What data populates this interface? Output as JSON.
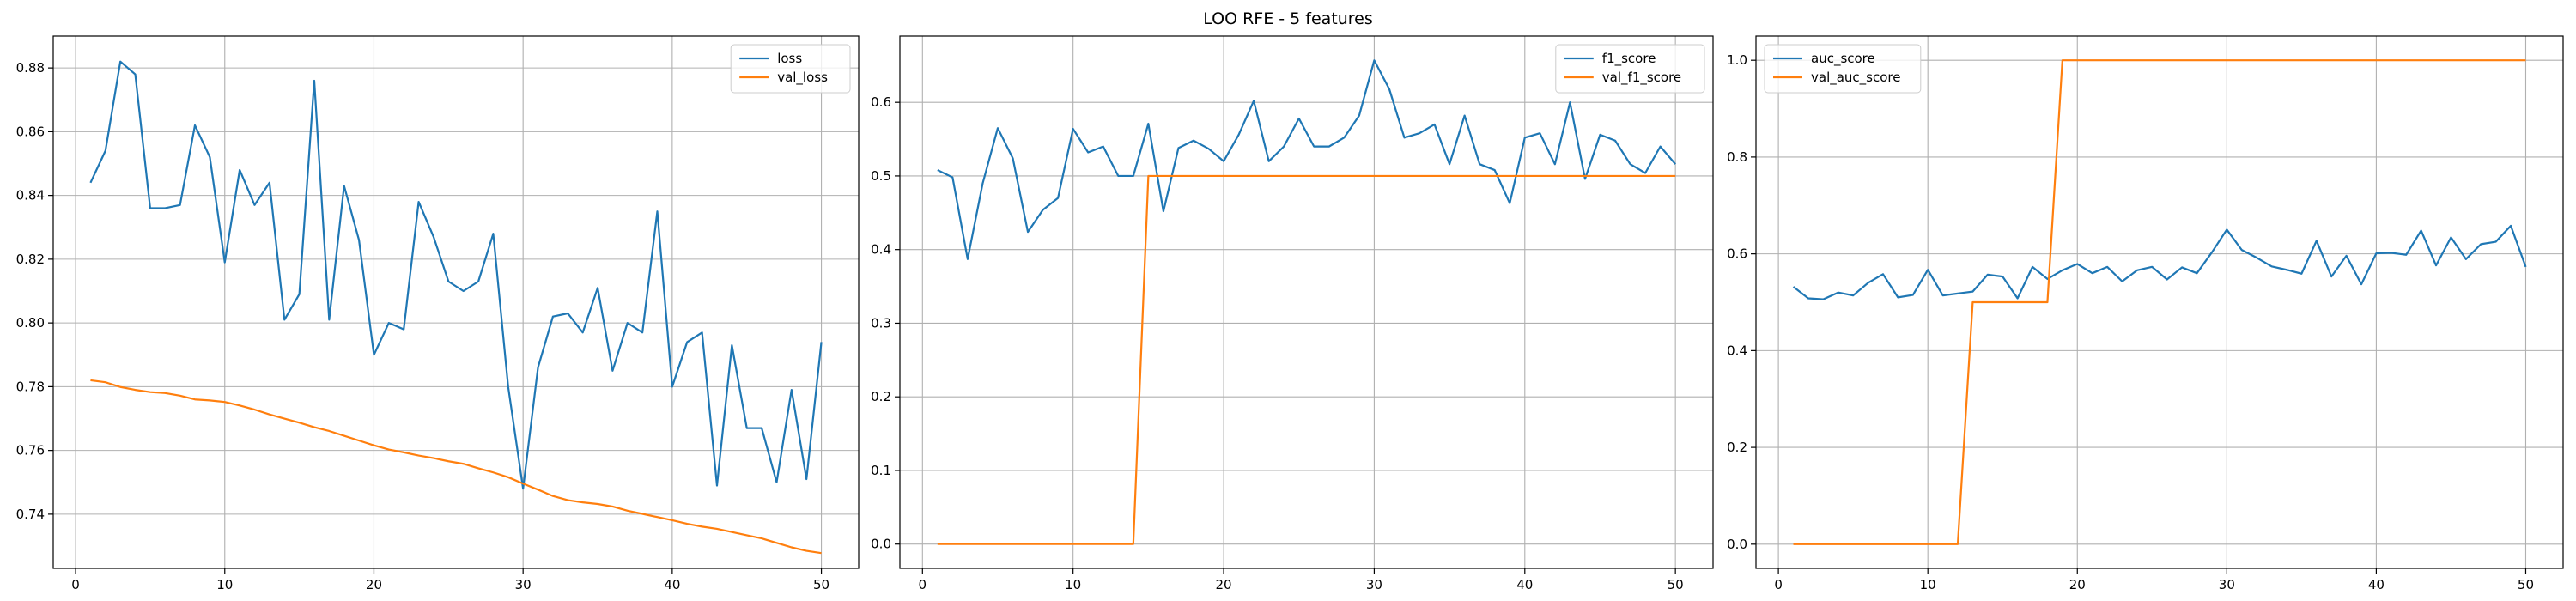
{
  "suptitle": "LOO RFE - 5 features",
  "colors": {
    "series_1": "#1f77b4",
    "series_2": "#ff7f0e",
    "grid": "#b0b0b0"
  },
  "chart_data": [
    {
      "type": "line",
      "title": "",
      "xlabel": "",
      "ylabel": "",
      "grid": true,
      "legend_placement": "top-right",
      "xlim": [
        -1.5,
        52.5
      ],
      "ylim": [
        0.723,
        0.89
      ],
      "xticks": [
        0,
        10,
        20,
        30,
        40,
        50
      ],
      "yticks": [
        0.74,
        0.76,
        0.78,
        0.8,
        0.82,
        0.84,
        0.86,
        0.88
      ],
      "ytick_decimals": 2,
      "x": [
        1,
        2,
        3,
        4,
        5,
        6,
        7,
        8,
        9,
        10,
        11,
        12,
        13,
        14,
        15,
        16,
        17,
        18,
        19,
        20,
        21,
        22,
        23,
        24,
        25,
        26,
        27,
        28,
        29,
        30,
        31,
        32,
        33,
        34,
        35,
        36,
        37,
        38,
        39,
        40,
        41,
        42,
        43,
        44,
        45,
        46,
        47,
        48,
        49,
        50
      ],
      "series": [
        {
          "name": "loss",
          "color": "#1f77b4",
          "values": [
            0.844,
            0.854,
            0.882,
            0.878,
            0.836,
            0.836,
            0.837,
            0.862,
            0.852,
            0.819,
            0.848,
            0.837,
            0.844,
            0.801,
            0.809,
            0.876,
            0.801,
            0.843,
            0.826,
            0.79,
            0.8,
            0.798,
            0.838,
            0.827,
            0.813,
            0.81,
            0.813,
            0.828,
            0.78,
            0.748,
            0.786,
            0.802,
            0.803,
            0.797,
            0.811,
            0.785,
            0.8,
            0.797,
            0.835,
            0.78,
            0.794,
            0.797,
            0.749,
            0.793,
            0.767,
            0.767,
            0.75,
            0.779,
            0.751,
            0.794
          ]
        },
        {
          "name": "val_loss",
          "color": "#ff7f0e",
          "values": [
            0.782,
            0.7814,
            0.7799,
            0.779,
            0.7783,
            0.778,
            0.7772,
            0.776,
            0.7757,
            0.7752,
            0.7741,
            0.7728,
            0.7713,
            0.77,
            0.7687,
            0.7673,
            0.7661,
            0.7646,
            0.7631,
            0.7616,
            0.7603,
            0.7594,
            0.7584,
            0.7576,
            0.7566,
            0.7558,
            0.7544,
            0.7531,
            0.7516,
            0.7496,
            0.7477,
            0.7457,
            0.7444,
            0.7437,
            0.7432,
            0.7424,
            0.7411,
            0.7401,
            0.7391,
            0.7381,
            0.737,
            0.7361,
            0.7354,
            0.7344,
            0.7334,
            0.7324,
            0.731,
            0.7296,
            0.7285,
            0.7278
          ]
        }
      ]
    },
    {
      "type": "line",
      "title": "",
      "xlabel": "",
      "ylabel": "",
      "grid": true,
      "legend_placement": "top-right",
      "xlim": [
        -1.5,
        52.5
      ],
      "ylim": [
        -0.033,
        0.69
      ],
      "xticks": [
        0,
        10,
        20,
        30,
        40,
        50
      ],
      "yticks": [
        0.0,
        0.1,
        0.2,
        0.3,
        0.4,
        0.5,
        0.6
      ],
      "ytick_decimals": 1,
      "x": [
        1,
        2,
        3,
        4,
        5,
        6,
        7,
        8,
        9,
        10,
        11,
        12,
        13,
        14,
        15,
        16,
        17,
        18,
        19,
        20,
        21,
        22,
        23,
        24,
        25,
        26,
        27,
        28,
        29,
        30,
        31,
        32,
        33,
        34,
        35,
        36,
        37,
        38,
        39,
        40,
        41,
        42,
        43,
        44,
        45,
        46,
        47,
        48,
        49,
        50
      ],
      "series": [
        {
          "name": "f1_score",
          "color": "#1f77b4",
          "values": [
            0.508,
            0.498,
            0.387,
            0.49,
            0.565,
            0.524,
            0.424,
            0.454,
            0.47,
            0.564,
            0.532,
            0.54,
            0.5,
            0.5,
            0.571,
            0.452,
            0.538,
            0.548,
            0.537,
            0.52,
            0.556,
            0.602,
            0.52,
            0.54,
            0.578,
            0.54,
            0.54,
            0.552,
            0.582,
            0.657,
            0.618,
            0.552,
            0.558,
            0.57,
            0.516,
            0.582,
            0.516,
            0.508,
            0.463,
            0.552,
            0.558,
            0.516,
            0.6,
            0.496,
            0.556,
            0.548,
            0.516,
            0.504,
            0.54,
            0.516
          ]
        },
        {
          "name": "val_f1_score",
          "color": "#ff7f0e",
          "values": [
            0,
            0,
            0,
            0,
            0,
            0,
            0,
            0,
            0,
            0,
            0,
            0,
            0,
            0,
            0.5,
            0.5,
            0.5,
            0.5,
            0.5,
            0.5,
            0.5,
            0.5,
            0.5,
            0.5,
            0.5,
            0.5,
            0.5,
            0.5,
            0.5,
            0.5,
            0.5,
            0.5,
            0.5,
            0.5,
            0.5,
            0.5,
            0.5,
            0.5,
            0.5,
            0.5,
            0.5,
            0.5,
            0.5,
            0.5,
            0.5,
            0.5,
            0.5,
            0.5,
            0.5,
            0.5
          ]
        }
      ]
    },
    {
      "type": "line",
      "title": "",
      "xlabel": "",
      "ylabel": "",
      "grid": true,
      "legend_placement": "top-left",
      "xlim": [
        -1.5,
        52.5
      ],
      "ylim": [
        -0.05,
        1.05
      ],
      "xticks": [
        0,
        10,
        20,
        30,
        40,
        50
      ],
      "yticks": [
        0.0,
        0.2,
        0.4,
        0.6,
        0.8,
        1.0
      ],
      "ytick_decimals": 1,
      "x": [
        1,
        2,
        3,
        4,
        5,
        6,
        7,
        8,
        9,
        10,
        11,
        12,
        13,
        14,
        15,
        16,
        17,
        18,
        19,
        20,
        21,
        22,
        23,
        24,
        25,
        26,
        27,
        28,
        29,
        30,
        31,
        32,
        33,
        34,
        35,
        36,
        37,
        38,
        39,
        40,
        41,
        42,
        43,
        44,
        45,
        46,
        47,
        48,
        49,
        50
      ],
      "series": [
        {
          "name": "auc_score",
          "color": "#1f77b4",
          "values": [
            0.532,
            0.508,
            0.506,
            0.52,
            0.514,
            0.54,
            0.558,
            0.51,
            0.515,
            0.567,
            0.514,
            0.518,
            0.522,
            0.557,
            0.553,
            0.508,
            0.573,
            0.548,
            0.566,
            0.579,
            0.56,
            0.573,
            0.543,
            0.566,
            0.573,
            0.547,
            0.572,
            0.56,
            0.603,
            0.65,
            0.608,
            0.592,
            0.574,
            0.567,
            0.559,
            0.627,
            0.553,
            0.596,
            0.537,
            0.601,
            0.602,
            0.598,
            0.648,
            0.576,
            0.634,
            0.589,
            0.62,
            0.625,
            0.658,
            0.573
          ]
        },
        {
          "name": "val_auc_score",
          "color": "#ff7f0e",
          "values": [
            0,
            0,
            0,
            0,
            0,
            0,
            0,
            0,
            0,
            0,
            0,
            0,
            0.5,
            0.5,
            0.5,
            0.5,
            0.5,
            0.5,
            1.0,
            1.0,
            1.0,
            1.0,
            1.0,
            1.0,
            1.0,
            1.0,
            1.0,
            1.0,
            1.0,
            1.0,
            1.0,
            1.0,
            1.0,
            1.0,
            1.0,
            1.0,
            1.0,
            1.0,
            1.0,
            1.0,
            1.0,
            1.0,
            1.0,
            1.0,
            1.0,
            1.0,
            1.0,
            1.0,
            1.0,
            1.0
          ]
        }
      ]
    }
  ]
}
